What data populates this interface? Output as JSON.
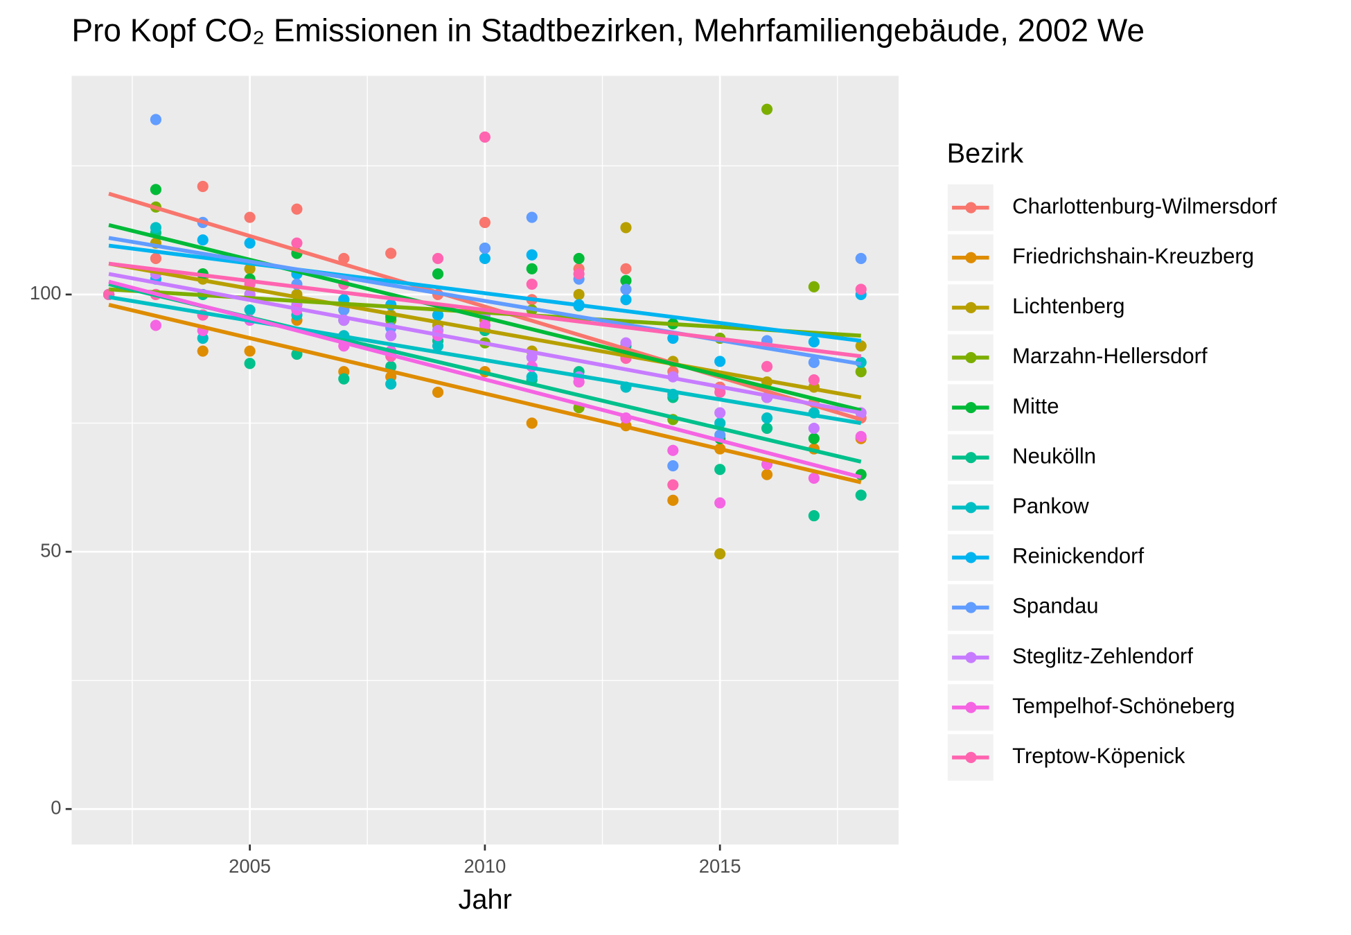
{
  "chart_data": {
    "type": "scatter",
    "title": "Pro Kopf CO₂ Emissionen in Stadtbezirken, Mehrfamiliengebäude, 2002 We",
    "xlabel": "Jahr",
    "legend_title": "Bezirk",
    "legend_position": "right",
    "grid": true,
    "x": [
      2002,
      2003,
      2004,
      2005,
      2006,
      2007,
      2008,
      2009,
      2010,
      2011,
      2012,
      2013,
      2014,
      2015,
      2016,
      2017,
      2018
    ],
    "xlim": [
      2001.21,
      2018.8
    ],
    "xticks": [
      2005,
      2010,
      2015
    ],
    "xminor": [
      2002.5,
      2007.5,
      2012.5,
      2017.5
    ],
    "ylim": [
      -6.9,
      142.5
    ],
    "yticks": [
      0,
      50,
      100
    ],
    "yminor": [
      25,
      75,
      125
    ],
    "trend_x": [
      2002,
      2018
    ],
    "series": [
      {
        "name": "Charlottenburg-Wilmersdorf",
        "color": "#F8766D",
        "values": [
          100,
          107,
          121,
          115,
          116.6,
          107,
          108,
          100,
          114,
          99,
          105,
          105,
          85,
          82,
          80,
          79,
          76
        ],
        "trend": [
          119.6,
          75.7
        ]
      },
      {
        "name": "Friedrichshain-Kreuzberg",
        "color": "#DE8C00",
        "values": [
          100,
          100,
          89,
          89,
          95,
          85,
          84,
          81,
          85,
          75,
          83,
          74.5,
          60,
          70,
          65,
          70,
          72
        ],
        "trend": [
          98,
          63.5
        ]
      },
      {
        "name": "Lichtenberg",
        "color": "#B79F00",
        "values": [
          100,
          110,
          103,
          105,
          100,
          99,
          96,
          94,
          95,
          89,
          100,
          113,
          87,
          49.6,
          83,
          82,
          90
        ],
        "trend": [
          106,
          80
        ]
      },
      {
        "name": "Marzahn-Hellersdorf",
        "color": "#7CAE00",
        "values": [
          100,
          117,
          104,
          100,
          108,
          97,
          95,
          96,
          90.6,
          97,
          78,
          88,
          75.7,
          91.5,
          136,
          101.5,
          85
        ],
        "trend": [
          101,
          92
        ]
      },
      {
        "name": "Mitte",
        "color": "#00BA38",
        "values": [
          100,
          120.4,
          104,
          103,
          108,
          95,
          95.6,
          104,
          109,
          105,
          107,
          102.7,
          94.3,
          72,
          80,
          72,
          65
        ],
        "trend": [
          113.5,
          77.5
        ]
      },
      {
        "name": "Neukölln",
        "color": "#00C08B",
        "values": [
          100,
          112,
          100,
          86.6,
          88.4,
          83.6,
          86,
          91,
          93,
          83.4,
          85,
          90,
          80,
          66,
          74,
          57,
          61
        ],
        "trend": [
          102,
          67.5
        ]
      },
      {
        "name": "Pankow",
        "color": "#00BFC4",
        "values": [
          100,
          113,
          91.5,
          97,
          96,
          92,
          82.6,
          90,
          96,
          84,
          97.8,
          82,
          80.6,
          75,
          76,
          77,
          86.8
        ],
        "trend": [
          99.5,
          75
        ]
      },
      {
        "name": "Reinickendorf",
        "color": "#00B4F0",
        "values": [
          100,
          103,
          110.6,
          110,
          104,
          99,
          98,
          96,
          107,
          107.7,
          98,
          99,
          91.5,
          87,
          91,
          90.8,
          100
        ],
        "trend": [
          109.5,
          91
        ]
      },
      {
        "name": "Spandau",
        "color": "#619CFF",
        "values": [
          100,
          134,
          114,
          100,
          102,
          97,
          93.5,
          93,
          109,
          115,
          103,
          101,
          66.7,
          72.7,
          91,
          86.8,
          107
        ],
        "trend": [
          111,
          86.5
        ]
      },
      {
        "name": "Steglitz-Zehlendorf",
        "color": "#C77CFF",
        "values": [
          100,
          104,
          96,
          100,
          98,
          95,
          92,
          93,
          96,
          87.8,
          84,
          90.6,
          84,
          77,
          80,
          74,
          77
        ],
        "trend": [
          104,
          77
        ]
      },
      {
        "name": "Tempelhof-Schöneberg",
        "color": "#F564E3",
        "values": [
          100,
          94,
          93,
          95,
          97,
          90,
          89,
          92,
          94,
          86,
          83,
          76,
          69.7,
          59.5,
          67,
          64.3,
          72.4
        ],
        "trend": [
          102.5,
          64.5
        ]
      },
      {
        "name": "Treptow-Köpenick",
        "color": "#FF64B0",
        "values": [
          100,
          100,
          96,
          102,
          110,
          102,
          88,
          107,
          130.6,
          102,
          104,
          87.6,
          63,
          81,
          86,
          83.4,
          101
        ],
        "trend": [
          106,
          88
        ]
      }
    ]
  }
}
